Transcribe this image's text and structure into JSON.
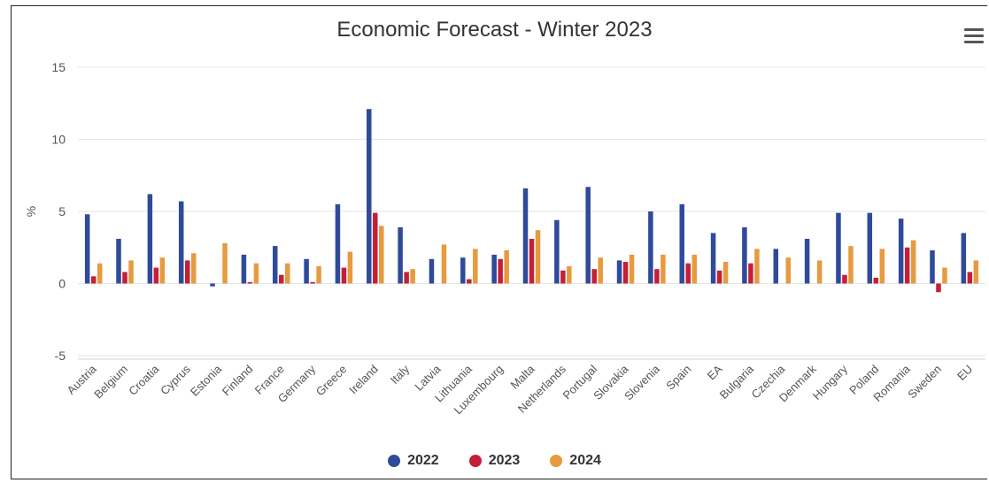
{
  "chart_data": {
    "type": "bar",
    "title": "Economic Forecast - Winter 2023",
    "ylabel": "%",
    "xlabel": "",
    "ylim": [
      -5,
      15
    ],
    "yticks": [
      -5,
      0,
      5,
      10,
      15
    ],
    "grid": true,
    "legend": "bottom-center",
    "categories": [
      "Austria",
      "Belgium",
      "Croatia",
      "Cyprus",
      "Estonia",
      "Finland",
      "France",
      "Germany",
      "Greece",
      "Ireland",
      "Italy",
      "Latvia",
      "Lithuania",
      "Luxembourg",
      "Malta",
      "Netherlands",
      "Portugal",
      "Slovakia",
      "Slovenia",
      "Spain",
      "EA",
      "Bulgaria",
      "Czechia",
      "Denmark",
      "Hungary",
      "Poland",
      "Romania",
      "Sweden",
      "EU"
    ],
    "series": [
      {
        "name": "2022",
        "color": "#2f4a9a",
        "values": [
          4.8,
          3.1,
          6.2,
          5.7,
          -0.2,
          2.0,
          2.6,
          1.7,
          5.5,
          12.1,
          3.9,
          1.7,
          1.8,
          2.0,
          6.6,
          4.4,
          6.7,
          1.6,
          5.0,
          5.5,
          3.5,
          3.9,
          2.4,
          3.1,
          4.9,
          4.9,
          4.5,
          2.3,
          3.5
        ]
      },
      {
        "name": "2023",
        "color": "#c51f37",
        "values": [
          0.5,
          0.8,
          1.1,
          1.6,
          0.0,
          0.1,
          0.6,
          0.1,
          1.1,
          4.9,
          0.8,
          0.0,
          0.3,
          1.7,
          3.1,
          0.9,
          1.0,
          1.5,
          1.0,
          1.4,
          0.9,
          1.4,
          0.0,
          0.0,
          0.6,
          0.4,
          2.5,
          -0.6,
          0.8
        ]
      },
      {
        "name": "2024",
        "color": "#e79a3f",
        "values": [
          1.4,
          1.6,
          1.8,
          2.1,
          2.8,
          1.4,
          1.4,
          1.2,
          2.2,
          4.0,
          1.0,
          2.7,
          2.4,
          2.3,
          3.7,
          1.2,
          1.8,
          2.0,
          2.0,
          2.0,
          1.5,
          2.4,
          1.8,
          1.6,
          2.6,
          2.4,
          3.0,
          1.1,
          1.6
        ]
      }
    ]
  }
}
